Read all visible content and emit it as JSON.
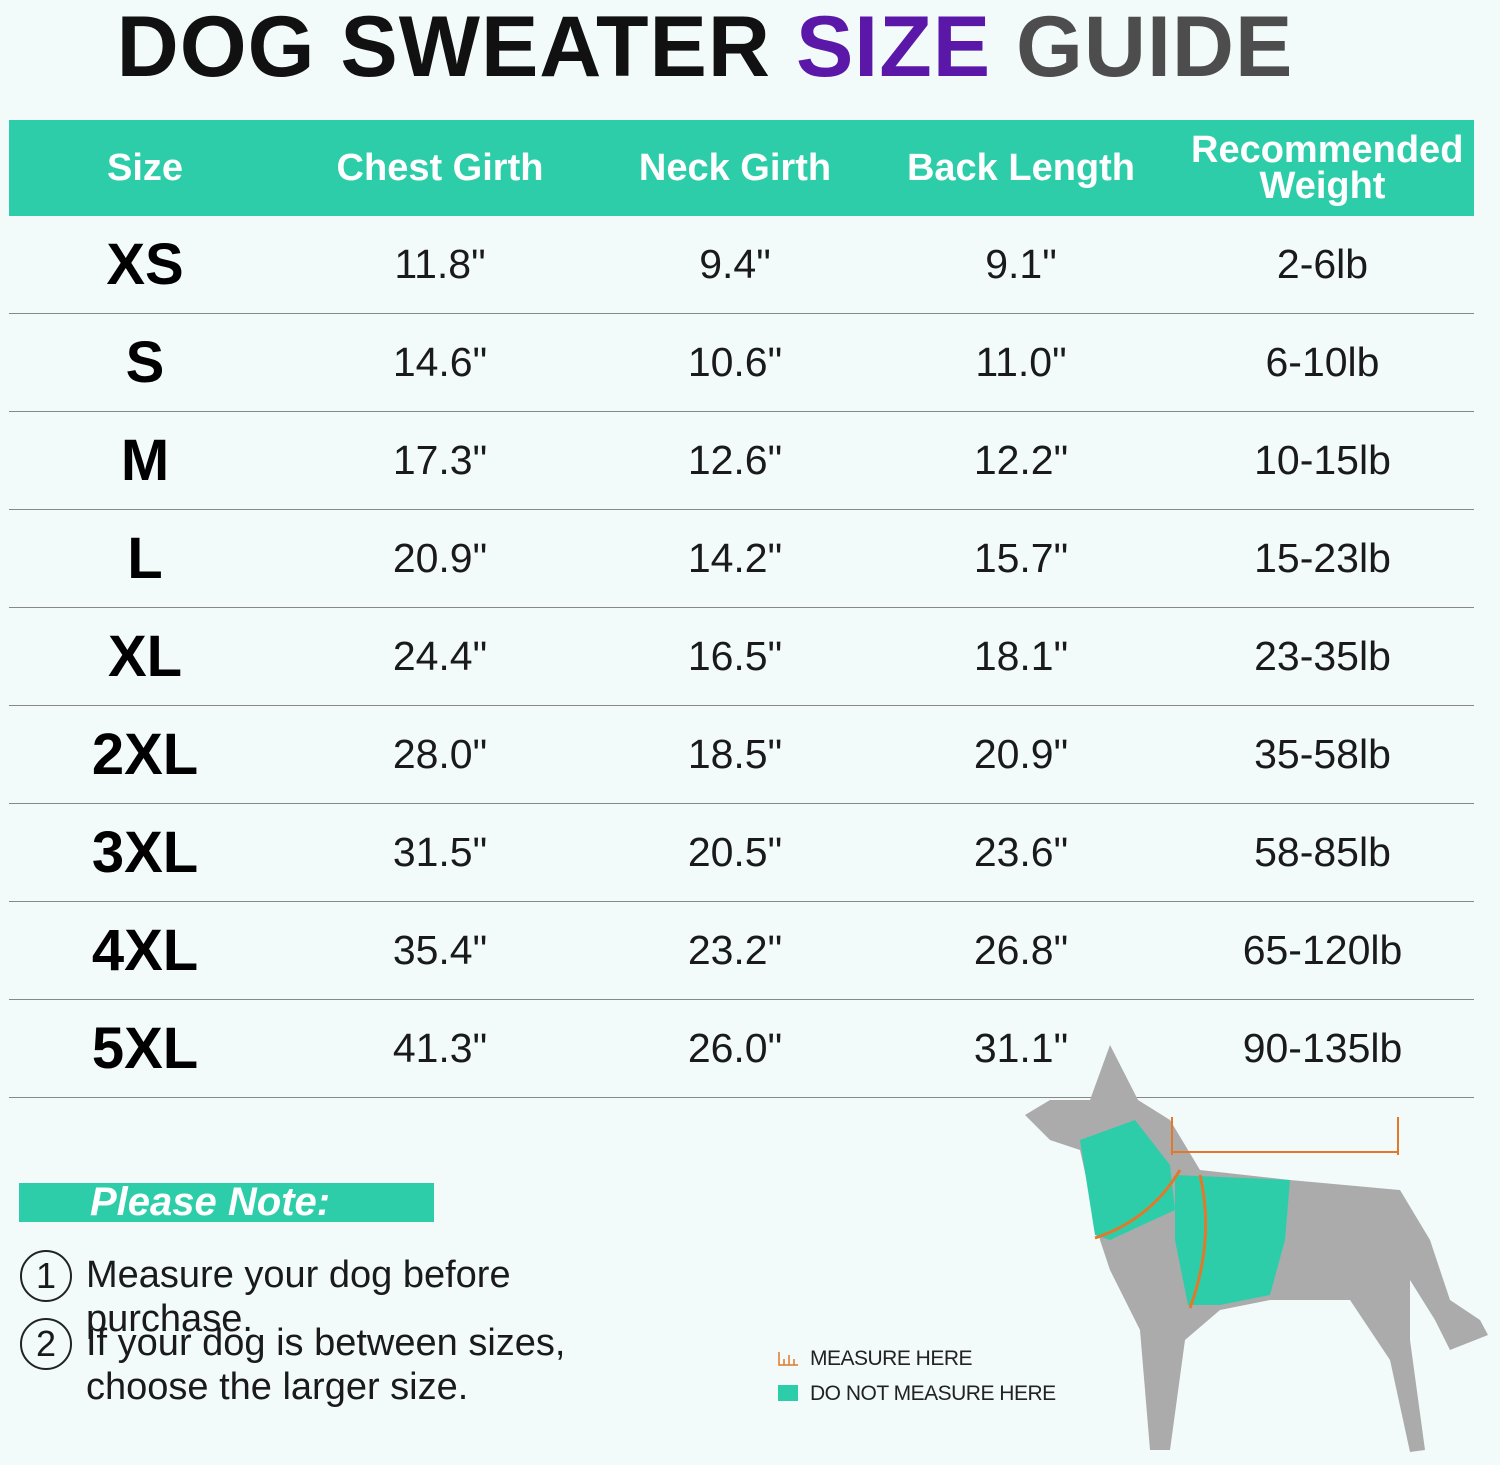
{
  "header": {
    "title_parts": [
      "DOG SWEATER",
      "SIZE",
      "GUIDE"
    ]
  },
  "table": {
    "columns": [
      "Size",
      "Chest Girth",
      "Neck Girth",
      "Back Length",
      "Recommended Weight"
    ],
    "rows": [
      [
        "XS",
        "11.8\"",
        "9.4\"",
        "9.1\"",
        "2-6lb"
      ],
      [
        "S",
        "14.6\"",
        "10.6\"",
        "11.0\"",
        "6-10lb"
      ],
      [
        "M",
        "17.3\"",
        "12.6\"",
        "12.2\"",
        "10-15lb"
      ],
      [
        "L",
        "20.9\"",
        "14.2\"",
        "15.7\"",
        "15-23lb"
      ],
      [
        "XL",
        "24.4\"",
        "16.5\"",
        "18.1\"",
        "23-35lb"
      ],
      [
        "2XL",
        "28.0\"",
        "18.5\"",
        "20.9\"",
        "35-58lb"
      ],
      [
        "3XL",
        "31.5\"",
        "20.5\"",
        "23.6\"",
        "58-85lb"
      ],
      [
        "4XL",
        "35.4\"",
        "23.2\"",
        "26.8\"",
        "65-120lb"
      ],
      [
        "5XL",
        "41.3\"",
        "26.0\"",
        "31.1\"",
        "90-135lb"
      ]
    ]
  },
  "notes": {
    "title": "Please Note:",
    "items": [
      {
        "marker": "1",
        "text": "Measure your dog before purchase."
      },
      {
        "marker": "2",
        "text": "If your dog is between sizes, choose the larger size."
      }
    ]
  },
  "legend": [
    "MEASURE HERE",
    "DO NOT MEASURE HERE"
  ]
}
